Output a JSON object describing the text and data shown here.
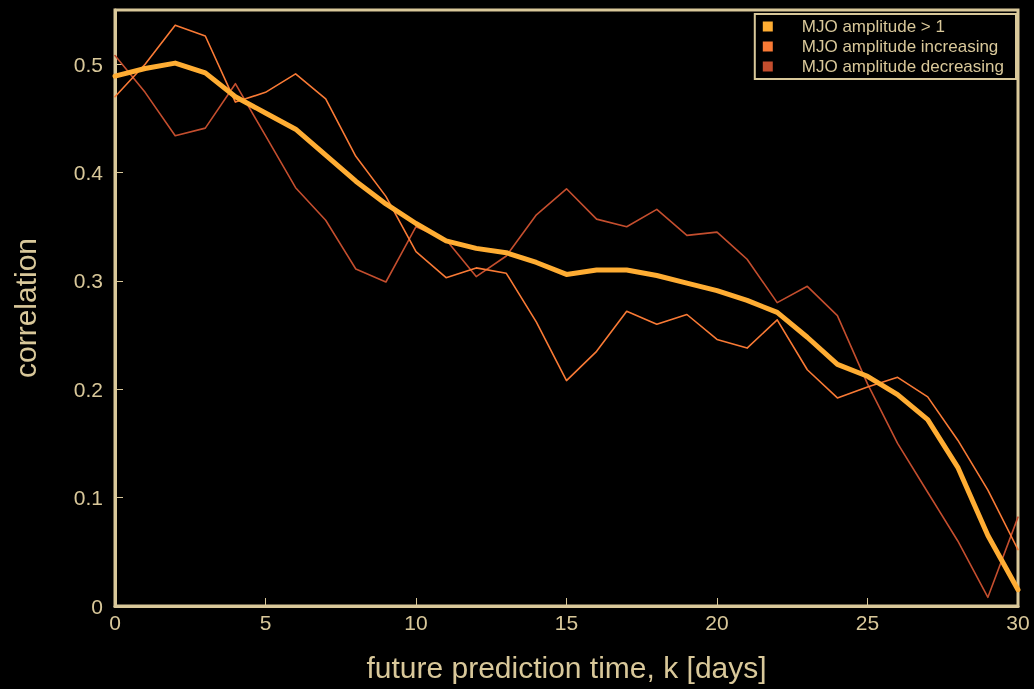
{
  "chart_data": {
    "type": "line",
    "xlabel": "future prediction time, k [days]",
    "ylabel": "correlation",
    "x": [
      0,
      1,
      2,
      3,
      4,
      5,
      6,
      7,
      8,
      9,
      10,
      11,
      12,
      13,
      14,
      15,
      16,
      17,
      18,
      19,
      20,
      21,
      22,
      23,
      24,
      25,
      26,
      27,
      28,
      29,
      30
    ],
    "series": [
      {
        "name": "MJO amplitude > 1",
        "color": "#ffad33",
        "values": [
          0.489,
          0.496,
          0.501,
          0.492,
          0.47,
          0.455,
          0.44,
          0.416,
          0.392,
          0.371,
          0.353,
          0.337,
          0.33,
          0.326,
          0.317,
          0.306,
          0.31,
          0.31,
          0.305,
          0.298,
          0.291,
          0.282,
          0.271,
          0.248,
          0.223,
          0.212,
          0.195,
          0.172,
          0.128,
          0.065,
          0.015
        ]
      },
      {
        "name": "MJO amplitude increasing",
        "color": "#f97a35",
        "values": [
          0.47,
          0.5,
          0.536,
          0.526,
          0.465,
          0.474,
          0.491,
          0.468,
          0.415,
          0.378,
          0.327,
          0.303,
          0.312,
          0.307,
          0.262,
          0.208,
          0.235,
          0.272,
          0.26,
          0.269,
          0.246,
          0.238,
          0.264,
          0.218,
          0.192,
          0.202,
          0.211,
          0.193,
          0.153,
          0.107,
          0.052
        ]
      },
      {
        "name": "MJO amplitude decreasing",
        "color": "#c44e2e",
        "values": [
          0.508,
          0.474,
          0.434,
          0.441,
          0.482,
          0.434,
          0.386,
          0.356,
          0.311,
          0.299,
          0.35,
          0.338,
          0.304,
          0.323,
          0.361,
          0.385,
          0.357,
          0.35,
          0.366,
          0.342,
          0.345,
          0.32,
          0.28,
          0.295,
          0.268,
          0.205,
          0.15,
          0.105,
          0.06,
          0.008,
          0.082
        ]
      }
    ],
    "xlim": [
      0,
      30
    ],
    "xticks": [
      0,
      5,
      10,
      15,
      20,
      25,
      30
    ],
    "ylim": [
      0,
      0.55
    ],
    "yticks": [
      0,
      0.1,
      0.2,
      0.3,
      0.4,
      0.5
    ],
    "grid": false,
    "legend": "top right",
    "marker": "none",
    "line_style": "solid"
  }
}
